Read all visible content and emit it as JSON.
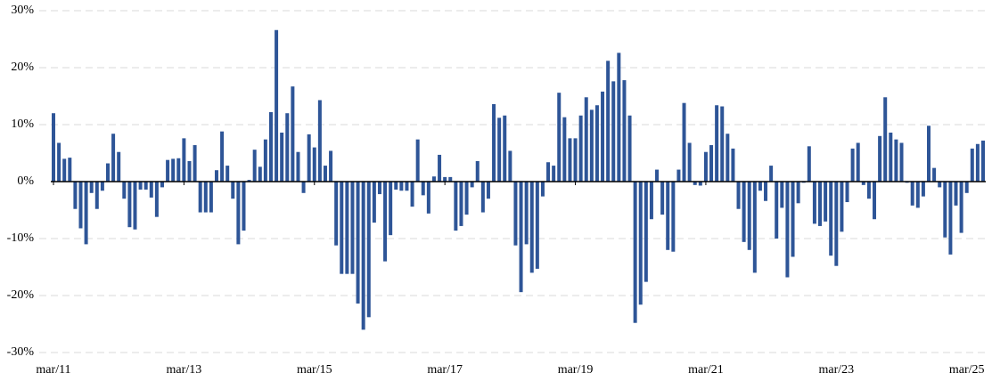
{
  "chart_data": {
    "type": "bar",
    "categories": [
      "mar/11",
      null,
      null,
      null,
      null,
      null,
      null,
      null,
      null,
      null,
      null,
      null,
      null,
      null,
      null,
      null,
      null,
      null,
      null,
      null,
      null,
      null,
      null,
      null,
      "mar/13",
      null,
      null,
      null,
      null,
      null,
      null,
      null,
      null,
      null,
      null,
      null,
      null,
      null,
      null,
      null,
      null,
      null,
      null,
      null,
      null,
      null,
      null,
      null,
      "mar/15",
      null,
      null,
      null,
      null,
      null,
      null,
      null,
      null,
      null,
      null,
      null,
      null,
      null,
      null,
      null,
      null,
      null,
      null,
      null,
      null,
      null,
      null,
      null,
      "mar/17",
      null,
      null,
      null,
      null,
      null,
      null,
      null,
      null,
      null,
      null,
      null,
      null,
      null,
      null,
      null,
      null,
      null,
      null,
      null,
      null,
      null,
      null,
      null,
      "mar/19",
      null,
      null,
      null,
      null,
      null,
      null,
      null,
      null,
      null,
      null,
      null,
      null,
      null,
      null,
      null,
      null,
      null,
      null,
      null,
      null,
      null,
      null,
      null,
      "mar/21",
      null,
      null,
      null,
      null,
      null,
      null,
      null,
      null,
      null,
      null,
      null,
      null,
      null,
      null,
      null,
      null,
      null,
      null,
      null,
      null,
      null,
      null,
      null,
      "mar/23",
      null,
      null,
      null,
      null,
      null,
      null,
      null,
      null,
      null,
      null,
      null,
      null,
      null,
      null,
      null,
      null,
      null,
      null,
      null,
      null,
      null,
      null,
      null,
      "mar/25",
      null,
      null,
      null
    ],
    "values": [
      12,
      6.8,
      4,
      4.2,
      -4.8,
      -8.2,
      -11,
      -2,
      -4.8,
      -1.6,
      3.2,
      8.4,
      5.2,
      -3,
      -8,
      -8.4,
      -1.4,
      -1.4,
      -2.8,
      -6.2,
      -1,
      3.8,
      4,
      4.1,
      7.6,
      3.6,
      6.4,
      -5.4,
      -5.4,
      -5.4,
      2,
      8.8,
      2.8,
      -3,
      -11,
      -8.6,
      0.3,
      5.6,
      2.6,
      7.4,
      12.2,
      26.6,
      8.6,
      12,
      16.7,
      5.2,
      -2,
      8.3,
      6,
      14.3,
      2.8,
      5.4,
      -11.2,
      -16.2,
      -16.2,
      -16.2,
      -21.4,
      -26,
      -23.8,
      -7.2,
      -2.2,
      -14,
      -9.4,
      -1.4,
      -1.6,
      -1.6,
      -4.4,
      7.4,
      -2.4,
      -5.6,
      0.9,
      4.7,
      0.8,
      0.8,
      -8.6,
      -7.8,
      -5.8,
      -1,
      3.6,
      -5.4,
      -3,
      13.6,
      11.2,
      11.6,
      5.4,
      -11.2,
      -19.4,
      -11,
      -16,
      -15.3,
      -2.6,
      3.4,
      2.8,
      15.6,
      11.3,
      7.6,
      7.6,
      11.6,
      14.8,
      12.6,
      13.4,
      15.8,
      21.2,
      17.6,
      22.6,
      17.8,
      11.6,
      -24.8,
      -21.6,
      -17.6,
      -6.6,
      2.1,
      -5.8,
      -12,
      -12.3,
      2.1,
      13.8,
      6.8,
      -0.6,
      -0.7,
      5.2,
      6.4,
      13.4,
      13.2,
      8.4,
      5.8,
      -4.8,
      -10.6,
      -12,
      -16,
      -1.6,
      -3.4,
      2.8,
      -10,
      -4.6,
      -16.8,
      -13.2,
      -3.8,
      -0.2,
      6.2,
      -7.4,
      -7.8,
      -7,
      -13,
      -14.8,
      -8.8,
      -3.6,
      5.8,
      6.8,
      -0.6,
      -3,
      -6.6,
      8,
      14.8,
      8.6,
      7.4,
      6.8,
      -0.2,
      -4.2,
      -4.6,
      -2.6,
      9.8,
      2.4,
      -1,
      -9.8,
      -12.8,
      -4.2,
      -9,
      -2,
      5.8,
      6.6,
      7.2
    ],
    "color": "#2e5597",
    "ylim": [
      -30,
      30
    ],
    "yticks": [
      {
        "value": -30,
        "label": "-30%"
      },
      {
        "value": -20,
        "label": "-20%"
      },
      {
        "value": -10,
        "label": "-10%"
      },
      {
        "value": 0,
        "label": "0%"
      },
      {
        "value": 10,
        "label": "10%"
      },
      {
        "value": 20,
        "label": "20%"
      },
      {
        "value": 30,
        "label": "30%"
      }
    ],
    "grid": true
  }
}
